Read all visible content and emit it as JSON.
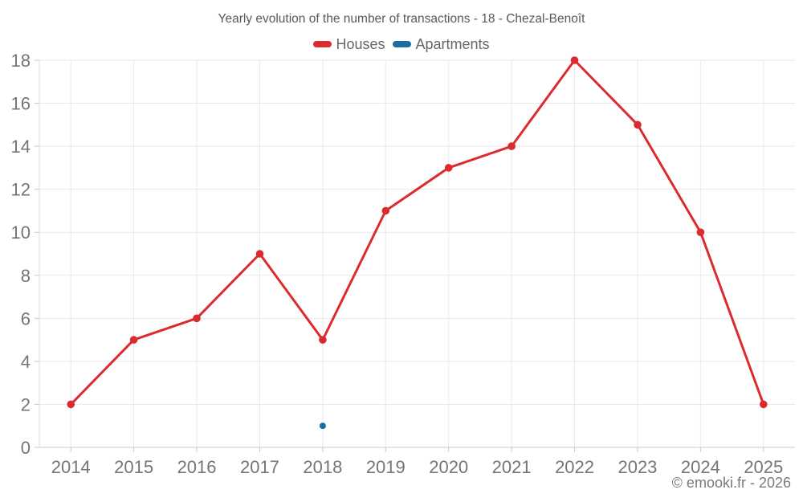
{
  "title": "Yearly evolution of the number of transactions - 18 - Chezal-Benoît",
  "footer": "© emooki.fr - 2026",
  "legend": {
    "items": [
      {
        "label": "Houses",
        "color": "#db2b2e"
      },
      {
        "label": "Apartments",
        "color": "#1a6d9e"
      }
    ]
  },
  "colors": {
    "background": "#ffffff",
    "title_text": "#595959",
    "legend_text": "#666666",
    "axis_text": "#757575",
    "gridline": "#e9e9e9",
    "axis_line": "#c9c9c9",
    "houses": "#db2b2e",
    "apartments": "#1a6d9e"
  },
  "chart_data": {
    "type": "line",
    "title": "Yearly evolution of the number of transactions - 18 - Chezal-Benoît",
    "categories": [
      "2014",
      "2015",
      "2016",
      "2017",
      "2018",
      "2019",
      "2020",
      "2021",
      "2022",
      "2023",
      "2024",
      "2025"
    ],
    "series": [
      {
        "name": "Houses",
        "color": "#db2b2e",
        "values": [
          2,
          5,
          6,
          9,
          5,
          11,
          13,
          14,
          18,
          15,
          10,
          2
        ]
      },
      {
        "name": "Apartments",
        "color": "#1a6d9e",
        "values": [
          null,
          null,
          null,
          null,
          1,
          null,
          null,
          null,
          null,
          null,
          null,
          null
        ]
      }
    ],
    "ylim": [
      0,
      18
    ],
    "yticks": [
      0,
      2,
      4,
      6,
      8,
      10,
      12,
      14,
      16,
      18
    ],
    "xlabel": "",
    "ylabel": "",
    "grid": true,
    "legend_position": "top"
  }
}
